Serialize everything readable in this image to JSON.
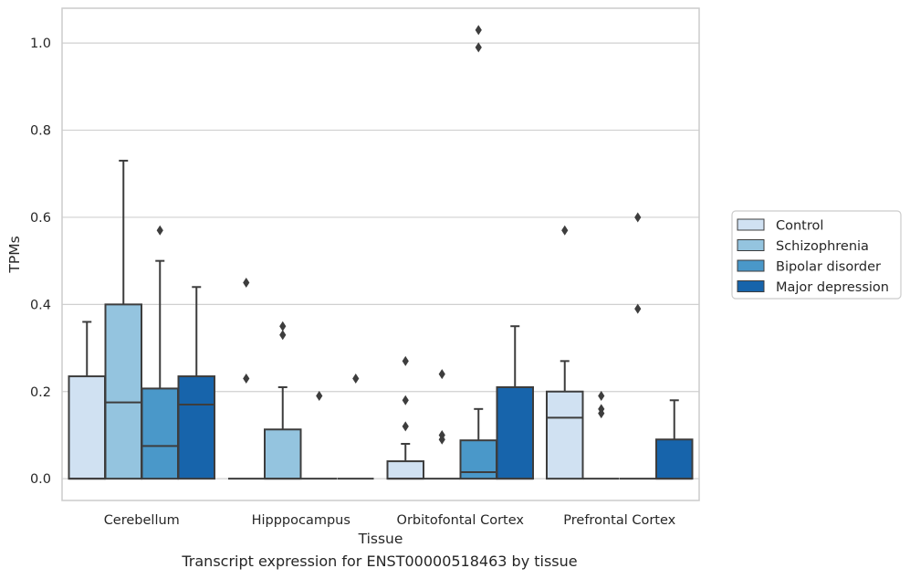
{
  "chart_data": {
    "type": "box",
    "xlabel": "Tissue",
    "ylabel": "TPMs",
    "ylim": [
      -0.05,
      1.08
    ],
    "yticks": [
      0.0,
      0.2,
      0.4,
      0.6,
      0.8,
      1.0
    ],
    "ytick_labels": [
      "0.0",
      "0.2",
      "0.4",
      "0.6",
      "0.8",
      "1.0"
    ],
    "grid": "horizontal",
    "legend_position": "right",
    "categories": [
      "Cerebellum",
      "Hipppocampus",
      "Orbitofontal Cortex",
      "Prefrontal Cortex"
    ],
    "series": [
      {
        "name": "Control",
        "color": "#d0e1f2",
        "boxes": [
          {
            "whislo": 0.0,
            "q1": 0.0,
            "med": 0.0,
            "q3": 0.235,
            "whishi": 0.36,
            "fliers": []
          },
          {
            "whislo": 0.0,
            "q1": 0.0,
            "med": 0.0,
            "q3": 0.0,
            "whishi": 0.0,
            "fliers": [
              0.45,
              0.23
            ]
          },
          {
            "whislo": 0.0,
            "q1": 0.0,
            "med": 0.0,
            "q3": 0.04,
            "whishi": 0.08,
            "fliers": [
              0.27,
              0.18,
              0.12
            ]
          },
          {
            "whislo": 0.0,
            "q1": 0.0,
            "med": 0.14,
            "q3": 0.2,
            "whishi": 0.27,
            "fliers": [
              0.57
            ]
          }
        ]
      },
      {
        "name": "Schizophrenia",
        "color": "#94c4df",
        "boxes": [
          {
            "whislo": 0.0,
            "q1": 0.0,
            "med": 0.175,
            "q3": 0.4,
            "whishi": 0.73,
            "fliers": []
          },
          {
            "whislo": 0.0,
            "q1": 0.0,
            "med": 0.0,
            "q3": 0.113,
            "whishi": 0.21,
            "fliers": [
              0.35,
              0.33
            ]
          },
          {
            "whislo": 0.0,
            "q1": 0.0,
            "med": 0.0,
            "q3": 0.0,
            "whishi": 0.0,
            "fliers": [
              0.24,
              0.1,
              0.09
            ]
          },
          {
            "whislo": 0.0,
            "q1": 0.0,
            "med": 0.0,
            "q3": 0.0,
            "whishi": 0.0,
            "fliers": [
              0.19,
              0.16,
              0.15
            ]
          }
        ]
      },
      {
        "name": "Bipolar disorder",
        "color": "#4a98c9",
        "boxes": [
          {
            "whislo": 0.0,
            "q1": 0.0,
            "med": 0.075,
            "q3": 0.207,
            "whishi": 0.5,
            "fliers": [
              0.57
            ]
          },
          {
            "whislo": 0.0,
            "q1": 0.0,
            "med": 0.0,
            "q3": 0.0,
            "whishi": 0.0,
            "fliers": [
              0.19
            ]
          },
          {
            "whislo": 0.0,
            "q1": 0.0,
            "med": 0.015,
            "q3": 0.088,
            "whishi": 0.16,
            "fliers": [
              1.03,
              0.99
            ]
          },
          {
            "whislo": 0.0,
            "q1": 0.0,
            "med": 0.0,
            "q3": 0.0,
            "whishi": 0.0,
            "fliers": [
              0.6,
              0.39
            ]
          }
        ]
      },
      {
        "name": "Major depression",
        "color": "#1764ab",
        "boxes": [
          {
            "whislo": 0.0,
            "q1": 0.0,
            "med": 0.17,
            "q3": 0.235,
            "whishi": 0.44,
            "fliers": []
          },
          {
            "whislo": 0.0,
            "q1": 0.0,
            "med": 0.0,
            "q3": 0.0,
            "whishi": 0.0,
            "fliers": [
              0.23
            ]
          },
          {
            "whislo": 0.0,
            "q1": 0.0,
            "med": 0.0,
            "q3": 0.21,
            "whishi": 0.35,
            "fliers": []
          },
          {
            "whislo": 0.0,
            "q1": 0.0,
            "med": 0.0,
            "q3": 0.09,
            "whishi": 0.18,
            "fliers": []
          }
        ]
      }
    ]
  },
  "caption": "Transcript expression for ENST00000518463 by tissue",
  "colors": {
    "grid": "#d0d0d0",
    "axes_edge": "#cccccc",
    "box_edge": "#3d3d3d",
    "text": "#262626"
  }
}
